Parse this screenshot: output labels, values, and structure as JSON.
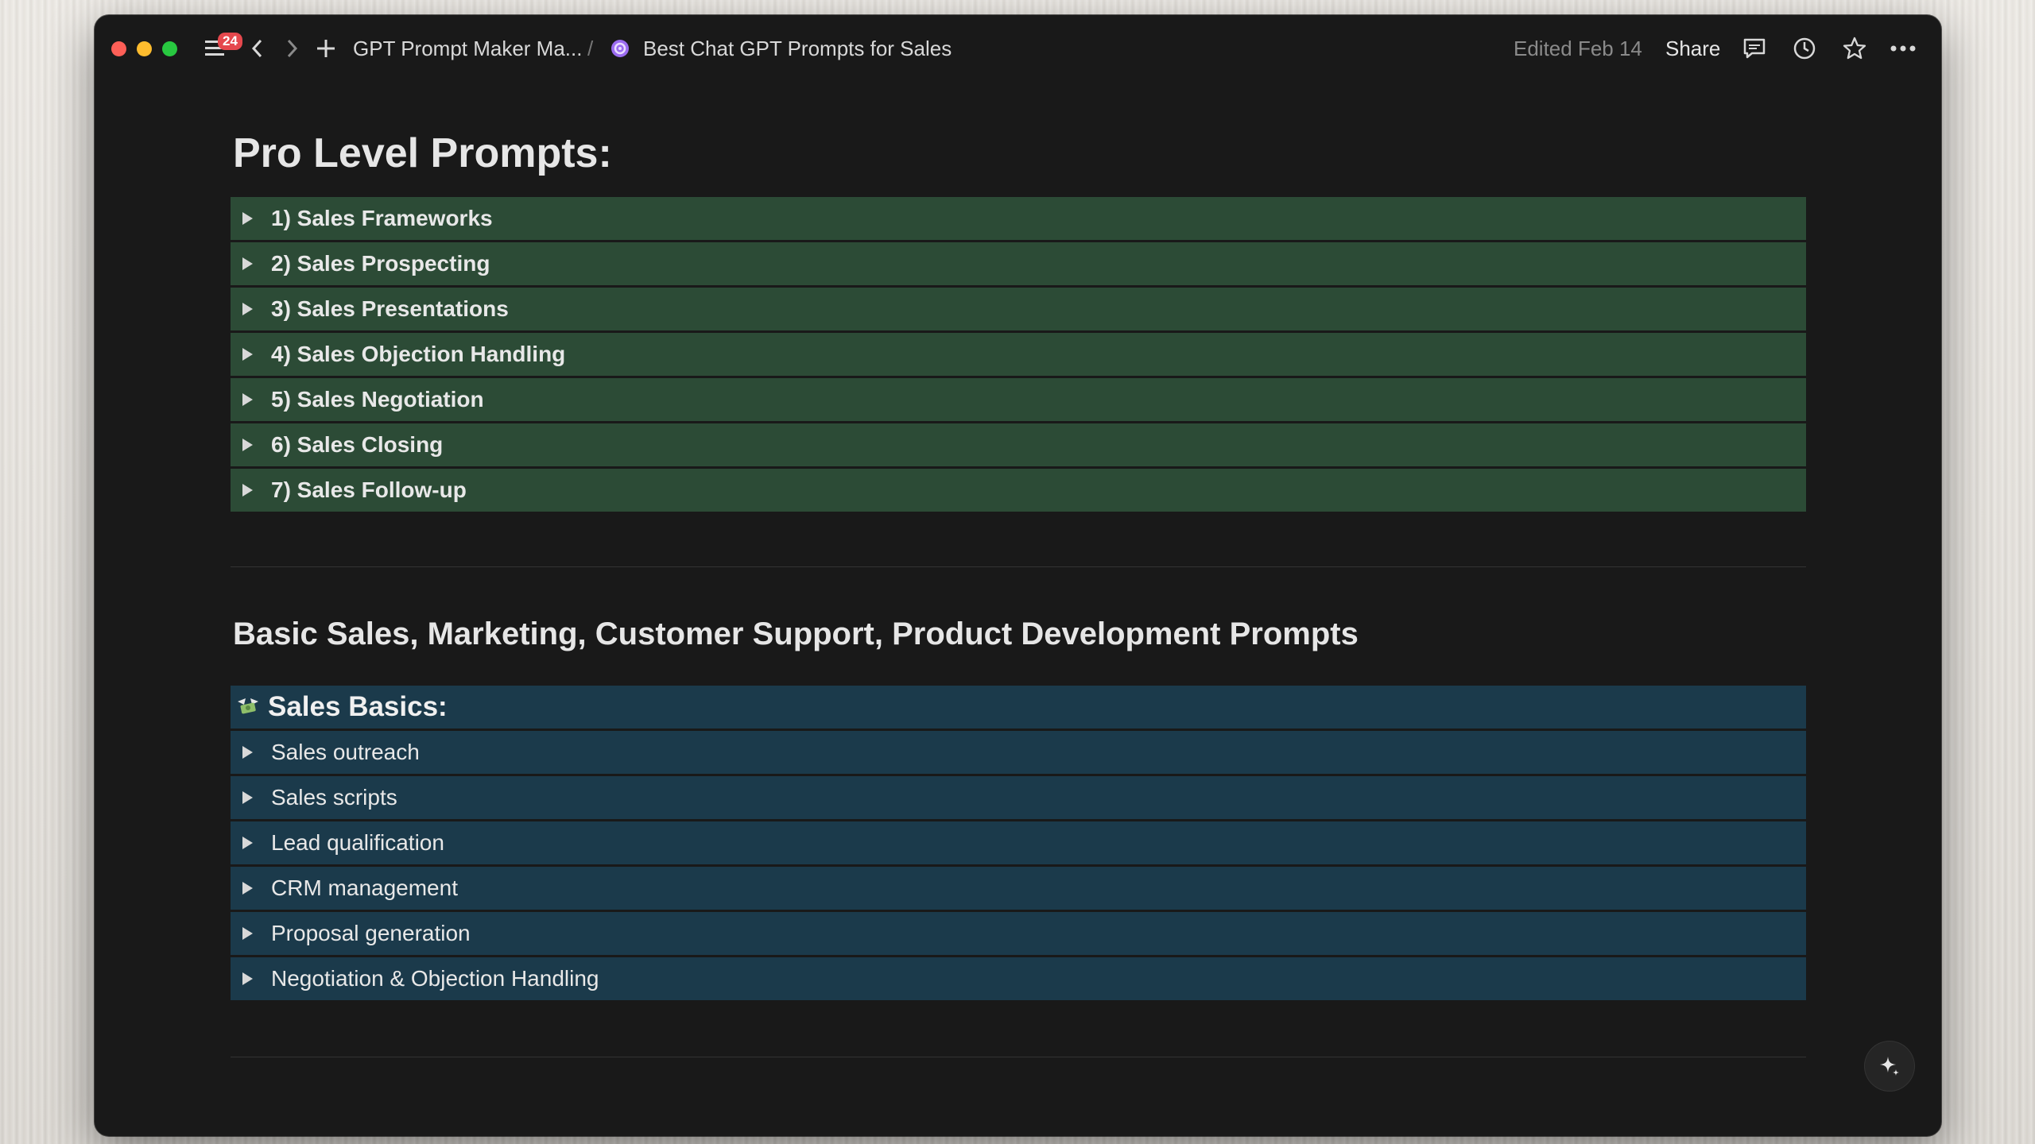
{
  "window": {
    "title_bar": {
      "notification_count": "24",
      "breadcrumb": [
        "GPT Prompt Maker Ma...",
        "Best Chat GPT Prompts for Sales"
      ],
      "breadcrumb_separator": "/",
      "edited": "Edited Feb 14",
      "share_label": "Share"
    }
  },
  "page": {
    "heading": "Pro Level Prompts:",
    "pro_prompts": [
      "1) Sales Frameworks",
      "2) Sales Prospecting",
      "3) Sales Presentations",
      "4) Sales Objection Handling",
      "5) Sales Negotiation",
      "6) Sales Closing",
      "7) Sales Follow-up"
    ],
    "section_heading": "Basic Sales, Marketing, Customer Support, Product Development Prompts",
    "sales_basics": {
      "title": "Sales Basics:",
      "icon": "money-wings-icon",
      "items": [
        "Sales outreach",
        "Sales scripts",
        "Lead qualification",
        "CRM management",
        "Proposal generation",
        "Negotiation & Objection Handling"
      ]
    }
  },
  "colors": {
    "background": "#191919",
    "pro_toggle_bg": "#2c4b36",
    "basic_toggle_bg": "#1b3a4b",
    "badge": "#e5484d"
  }
}
